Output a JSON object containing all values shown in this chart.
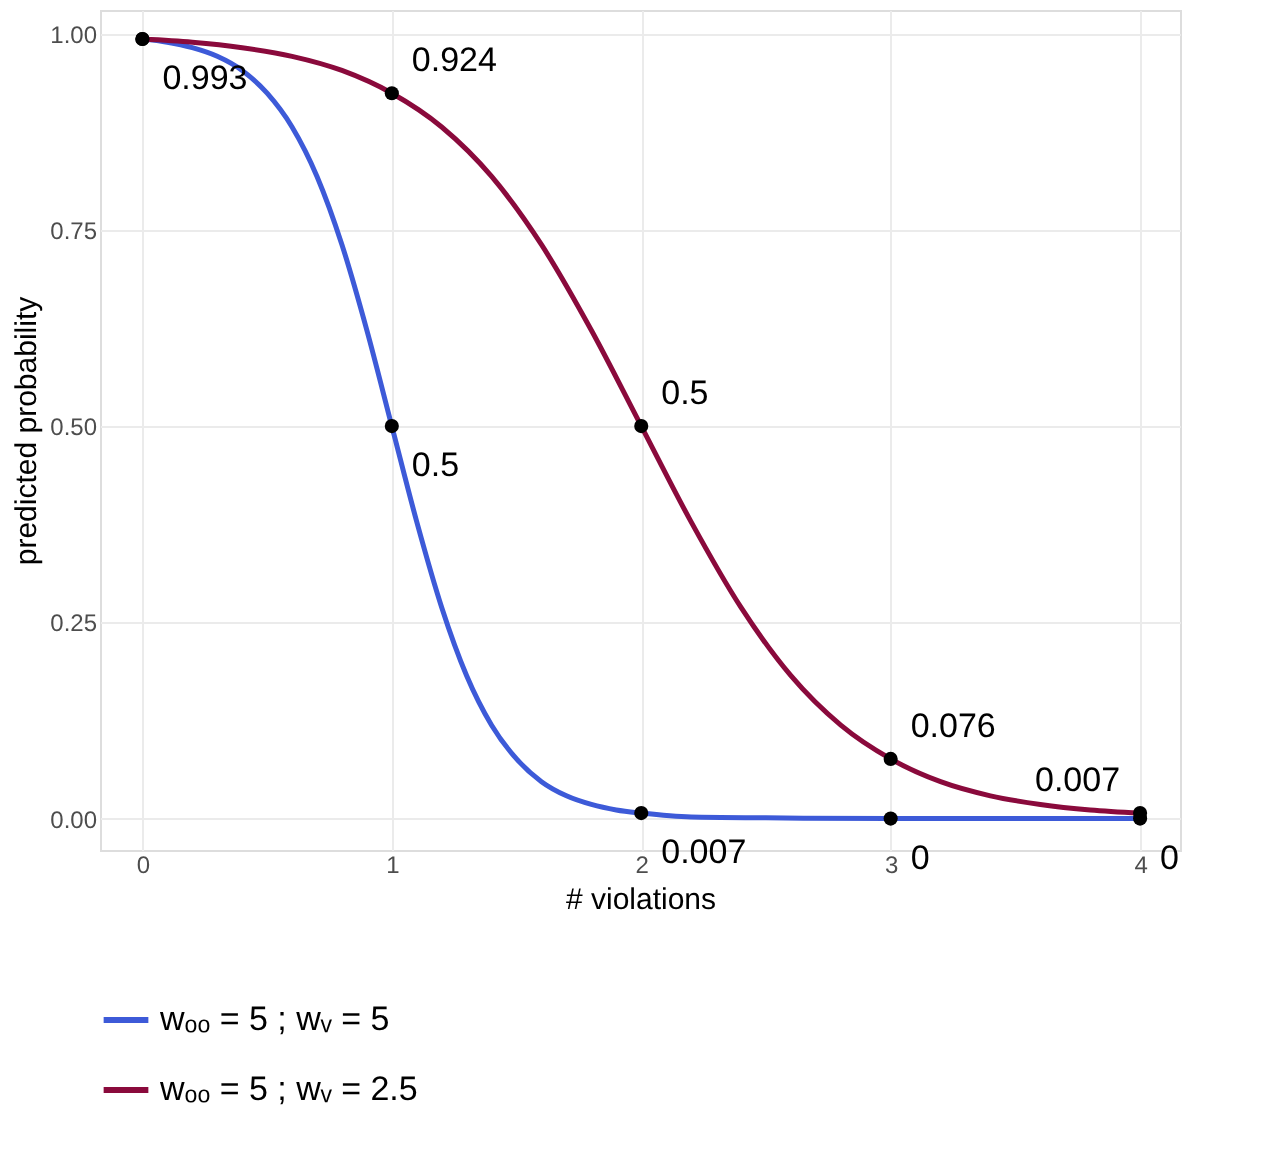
{
  "chart_data": {
    "type": "line",
    "xlabel": "# violations",
    "ylabel": "predicted probability",
    "xlim": [
      -0.17,
      4.16
    ],
    "xticks": [
      0,
      1,
      2,
      3,
      4
    ],
    "ylim": [
      -0.04,
      1.03
    ],
    "yticks": [
      {
        "value": 0,
        "label": "0.00"
      },
      {
        "value": 0.25,
        "label": "0.25"
      },
      {
        "value": 0.5,
        "label": "0.50"
      },
      {
        "value": 0.75,
        "label": "0.75"
      },
      {
        "value": 1,
        "label": "1.00"
      }
    ],
    "grid": true,
    "legend": "bottom",
    "series": [
      {
        "name": "wₒₒ = 5 ; wᵥ = 5",
        "color": "#3d5ad8",
        "x": [
          0,
          0.1,
          0.2,
          0.3,
          0.4,
          0.5,
          0.6,
          0.7,
          0.8,
          0.9,
          1.0,
          1.1,
          1.2,
          1.3,
          1.4,
          1.5,
          1.6,
          1.7,
          1.8,
          1.9,
          2.0,
          2.2,
          2.5,
          3,
          3.5,
          4
        ],
        "values": [
          0.993,
          0.989,
          0.982,
          0.971,
          0.953,
          0.924,
          0.881,
          0.818,
          0.731,
          0.622,
          0.5,
          0.378,
          0.269,
          0.182,
          0.119,
          0.076,
          0.047,
          0.029,
          0.018,
          0.011,
          0.007,
          0.002,
          0.001,
          0,
          0,
          0
        ]
      },
      {
        "name": "wₒₒ = 5 ; wᵥ = 2.5",
        "color": "#8a0a3c",
        "x": [
          0,
          0.2,
          0.4,
          0.6,
          0.8,
          1.0,
          1.2,
          1.4,
          1.6,
          1.8,
          2.0,
          2.2,
          2.4,
          2.6,
          2.8,
          3.0,
          3.2,
          3.4,
          3.6,
          3.8,
          4.0
        ],
        "values": [
          0.993,
          0.989,
          0.982,
          0.971,
          0.953,
          0.924,
          0.881,
          0.818,
          0.731,
          0.622,
          0.5,
          0.378,
          0.269,
          0.182,
          0.119,
          0.076,
          0.047,
          0.029,
          0.018,
          0.011,
          0.007
        ]
      },
      {
        "type": "scatter",
        "color": "#000000",
        "marker": "circle",
        "x": [
          0,
          1,
          2,
          3,
          4
        ],
        "values": [
          0.993,
          0.5,
          0.007,
          0,
          0
        ],
        "value_labels": [
          "0.993",
          "0.5",
          "0.007",
          "0",
          "0"
        ]
      },
      {
        "type": "scatter",
        "color": "#000000",
        "marker": "circle",
        "x": [
          0,
          1,
          2,
          3,
          4
        ],
        "values": [
          0.993,
          0.924,
          0.5,
          0.076,
          0.007
        ],
        "value_labels": [
          null,
          "0.924",
          "0.5",
          "0.076",
          "0.007"
        ]
      }
    ]
  }
}
